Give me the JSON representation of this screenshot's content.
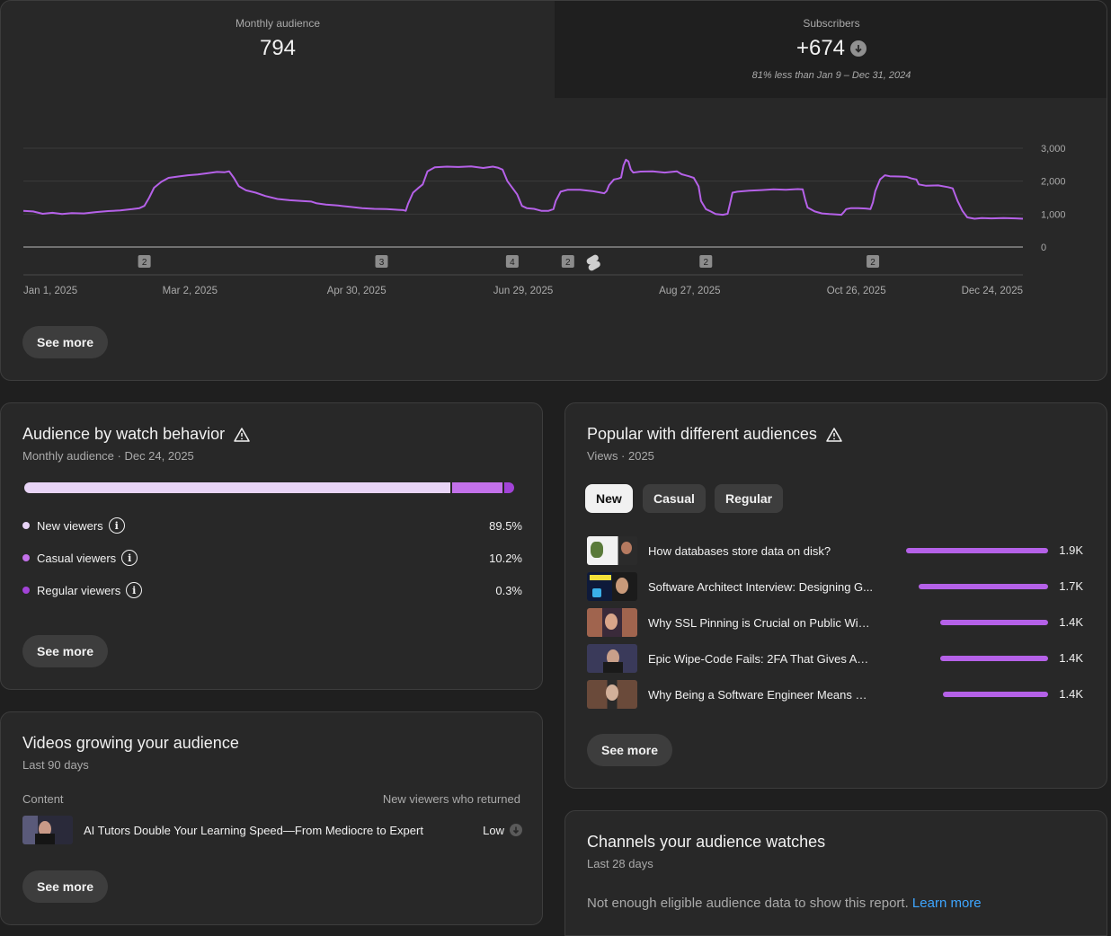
{
  "metrics": {
    "audience": {
      "label": "Monthly audience",
      "value": "794"
    },
    "subscribers": {
      "label": "Subscribers",
      "value": "+674",
      "note": "81% less than Jan 9 – Dec 31, 2024"
    }
  },
  "chart_data": {
    "type": "line",
    "title": "Monthly audience",
    "color": "#b561e8",
    "ylim": [
      0,
      3000
    ],
    "y_ticks": [
      "3,000",
      "2,000",
      "1,000",
      "0"
    ],
    "x_tick_labels": [
      "Jan 1, 2025",
      "Mar 2, 2025",
      "Apr 30, 2025",
      "Jun 29, 2025",
      "Aug 27, 2025",
      "Oct 26, 2025",
      "Dec 24, 2025"
    ],
    "days_total": 358,
    "series": [
      {
        "name": "Monthly audience",
        "points": [
          [
            0,
            1100
          ],
          [
            4,
            1080
          ],
          [
            8,
            1010
          ],
          [
            12,
            1040
          ],
          [
            16,
            1000
          ],
          [
            20,
            1030
          ],
          [
            25,
            1020
          ],
          [
            30,
            1060
          ],
          [
            35,
            1090
          ],
          [
            40,
            1110
          ],
          [
            45,
            1150
          ],
          [
            48,
            1180
          ],
          [
            50,
            1250
          ],
          [
            52,
            1500
          ],
          [
            54,
            1800
          ],
          [
            57,
            1980
          ],
          [
            60,
            2100
          ],
          [
            64,
            2140
          ],
          [
            68,
            2180
          ],
          [
            72,
            2200
          ],
          [
            76,
            2240
          ],
          [
            80,
            2280
          ],
          [
            83,
            2270
          ],
          [
            85,
            2300
          ],
          [
            87,
            2100
          ],
          [
            89,
            1850
          ],
          [
            92,
            1720
          ],
          [
            96,
            1650
          ],
          [
            100,
            1550
          ],
          [
            105,
            1460
          ],
          [
            110,
            1420
          ],
          [
            115,
            1400
          ],
          [
            119,
            1380
          ],
          [
            121,
            1330
          ],
          [
            125,
            1290
          ],
          [
            130,
            1260
          ],
          [
            135,
            1220
          ],
          [
            140,
            1180
          ],
          [
            145,
            1160
          ],
          [
            150,
            1150
          ],
          [
            153,
            1140
          ],
          [
            155,
            1130
          ],
          [
            157,
            1120
          ],
          [
            158,
            1100
          ],
          [
            159,
            1320
          ],
          [
            161,
            1650
          ],
          [
            163,
            1780
          ],
          [
            165,
            1900
          ],
          [
            167,
            2300
          ],
          [
            170,
            2420
          ],
          [
            175,
            2440
          ],
          [
            180,
            2430
          ],
          [
            185,
            2450
          ],
          [
            190,
            2400
          ],
          [
            194,
            2440
          ],
          [
            196,
            2410
          ],
          [
            198,
            2350
          ],
          [
            200,
            2000
          ],
          [
            204,
            1600
          ],
          [
            206,
            1250
          ],
          [
            208,
            1180
          ],
          [
            211,
            1160
          ],
          [
            214,
            1100
          ],
          [
            217,
            1100
          ],
          [
            219,
            1150
          ],
          [
            220,
            1400
          ],
          [
            222,
            1680
          ],
          [
            225,
            1740
          ],
          [
            230,
            1740
          ],
          [
            235,
            1700
          ],
          [
            238,
            1660
          ],
          [
            240,
            1630
          ],
          [
            241,
            1700
          ],
          [
            242,
            1880
          ],
          [
            244,
            2050
          ],
          [
            246,
            2080
          ],
          [
            247,
            2110
          ],
          [
            248,
            2480
          ],
          [
            249,
            2650
          ],
          [
            250,
            2600
          ],
          [
            251,
            2350
          ],
          [
            252,
            2260
          ],
          [
            255,
            2290
          ],
          [
            260,
            2300
          ],
          [
            265,
            2260
          ],
          [
            270,
            2300
          ],
          [
            272,
            2210
          ],
          [
            275,
            2150
          ],
          [
            277,
            2100
          ],
          [
            279,
            1840
          ],
          [
            280,
            1400
          ],
          [
            282,
            1150
          ],
          [
            284,
            1080
          ],
          [
            286,
            1000
          ],
          [
            289,
            980
          ],
          [
            291,
            1010
          ],
          [
            292,
            1320
          ],
          [
            293,
            1650
          ],
          [
            295,
            1680
          ],
          [
            300,
            1710
          ],
          [
            305,
            1730
          ],
          [
            310,
            1750
          ],
          [
            315,
            1740
          ],
          [
            320,
            1760
          ],
          [
            322,
            1750
          ],
          [
            323,
            1450
          ],
          [
            324,
            1200
          ],
          [
            327,
            1080
          ],
          [
            330,
            1020
          ],
          [
            333,
            1000
          ],
          [
            336,
            990
          ],
          [
            338,
            980
          ],
          [
            339,
            1060
          ],
          [
            340,
            1150
          ],
          [
            342,
            1180
          ],
          [
            345,
            1180
          ],
          [
            348,
            1170
          ],
          [
            350,
            1150
          ],
          [
            351,
            1350
          ],
          [
            352,
            1700
          ],
          [
            354,
            2050
          ],
          [
            356,
            2180
          ],
          [
            358,
            2150
          ]
        ],
        "segment2": [
          [
            358,
            2150
          ],
          [
            362,
            2140
          ],
          [
            365,
            2130
          ],
          [
            367,
            2080
          ],
          [
            369,
            2050
          ],
          [
            370,
            1900
          ],
          [
            373,
            1860
          ],
          [
            378,
            1870
          ],
          [
            382,
            1820
          ],
          [
            384,
            1780
          ],
          [
            386,
            1400
          ],
          [
            388,
            1100
          ],
          [
            390,
            900
          ],
          [
            393,
            860
          ],
          [
            396,
            880
          ],
          [
            400,
            870
          ],
          [
            405,
            880
          ],
          [
            410,
            870
          ],
          [
            413,
            860
          ]
        ]
      }
    ],
    "x_max_day": 413,
    "markers": [
      {
        "day": 50,
        "label": "2",
        "kind": "count"
      },
      {
        "day": 148,
        "label": "3",
        "kind": "count"
      },
      {
        "day": 202,
        "label": "4",
        "kind": "count"
      },
      {
        "day": 225,
        "label": "2",
        "kind": "count"
      },
      {
        "day": 235,
        "label": "",
        "kind": "shorts"
      },
      {
        "day": 282,
        "label": "2",
        "kind": "count"
      },
      {
        "day": 351,
        "label": "2",
        "kind": "count"
      }
    ]
  },
  "top_card": {
    "see_more": "See more"
  },
  "behavior": {
    "title": "Audience by watch behavior",
    "subtitle": "Monthly audience · Dec 24, 2025",
    "segments": [
      {
        "name": "New viewers",
        "value": "89.5%",
        "pct": 89.5,
        "color": "#e8d4f6"
      },
      {
        "name": "Casual viewers",
        "value": "10.2%",
        "pct": 10.2,
        "color": "#c371ea"
      },
      {
        "name": "Regular viewers",
        "value": "0.3%",
        "pct": 0.3,
        "color": "#a243d8"
      }
    ],
    "see_more": "See more"
  },
  "popular": {
    "title": "Popular with different audiences",
    "subtitle": "Views · 2025",
    "chips": [
      "New",
      "Casual",
      "Regular"
    ],
    "active_chip": "New",
    "videos": [
      {
        "title": "How databases store data on disk?",
        "value": "1.9K",
        "fraction": 1.0
      },
      {
        "title": "Software Architect Interview: Designing G...",
        "value": "1.7K",
        "fraction": 0.91
      },
      {
        "title": "Why SSL Pinning is Crucial on Public WiFi...",
        "value": "1.4K",
        "fraction": 0.76
      },
      {
        "title": "Epic Wipe-Code Fails: 2FA That Gives Awa...",
        "value": "1.4K",
        "fraction": 0.76
      },
      {
        "title": "Why Being a Software Engineer Means Mi...",
        "value": "1.4K",
        "fraction": 0.74
      }
    ],
    "see_more": "See more"
  },
  "growing": {
    "title": "Videos growing your audience",
    "subtitle": "Last 90 days",
    "col_content": "Content",
    "col_metric": "New viewers who returned",
    "rows": [
      {
        "title": "AI Tutors Double Your Learning Speed—From Mediocre to Expert",
        "value": "Low"
      }
    ],
    "see_more": "See more"
  },
  "channels": {
    "title": "Channels your audience watches",
    "subtitle": "Last 28 days",
    "message": "Not enough eligible audience data to show this report.",
    "link": "Learn more"
  }
}
